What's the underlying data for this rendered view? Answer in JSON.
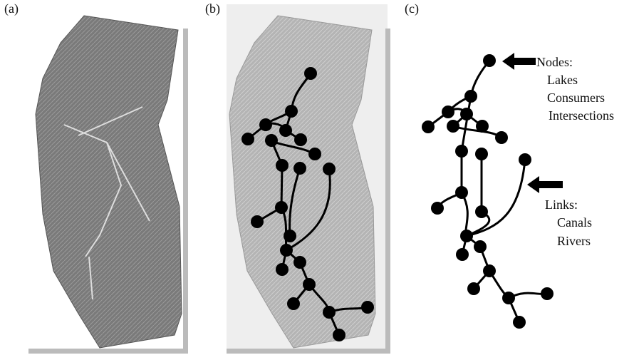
{
  "panels": [
    {
      "label": "(a)"
    },
    {
      "label": "(b)"
    },
    {
      "label": "(c)"
    }
  ],
  "annotations": {
    "nodes": {
      "title": "Nodes:",
      "items": [
        "Lakes",
        "Consumers",
        "Intersections"
      ]
    },
    "links": {
      "title": "Links:",
      "items": [
        "Canals",
        "Rivers"
      ]
    }
  }
}
